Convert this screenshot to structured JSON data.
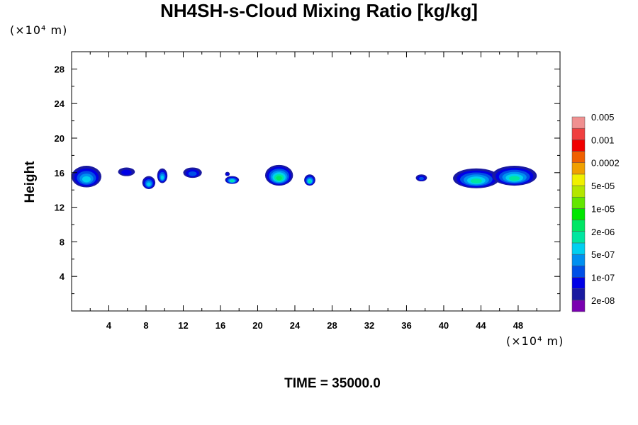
{
  "chart_data": {
    "type": "contour",
    "title": "NH4SH-s-Cloud Mixing Ratio [kg/kg]",
    "ylabel": "Height",
    "x_unit": "(×10⁴ m)",
    "y_unit": "(×10⁴ m)",
    "time_label": "TIME = 35000.0",
    "xlim": [
      0,
      52.5
    ],
    "ylim": [
      0,
      30
    ],
    "xticks": [
      4,
      8,
      12,
      16,
      20,
      24,
      28,
      32,
      36,
      40,
      44,
      48
    ],
    "yticks": [
      4,
      8,
      12,
      16,
      20,
      24,
      28
    ],
    "colorbar": {
      "colors": [
        "#7a00b0",
        "#1a1aa0",
        "#0000e6",
        "#0050e6",
        "#0090f0",
        "#00d0f0",
        "#00e6a0",
        "#00e664",
        "#00e600",
        "#64e600",
        "#b4e600",
        "#f0f000",
        "#f0a000",
        "#f06000",
        "#f00000",
        "#f04040",
        "#f09090"
      ],
      "labels": [
        "2e-08",
        "1e-07",
        "5e-07",
        "2e-06",
        "1e-05",
        "5e-05",
        "0.0002",
        "0.001",
        "0.005"
      ]
    },
    "cloud_cells": [
      {
        "x": [
          0,
          3.2
        ],
        "y": [
          14.3,
          16.8
        ],
        "peak": 5
      },
      {
        "x": [
          5,
          6.8
        ],
        "y": [
          15.6,
          16.6
        ],
        "peak": 2
      },
      {
        "x": [
          7.6,
          9.0
        ],
        "y": [
          14.1,
          15.6
        ],
        "peak": 5
      },
      {
        "x": [
          9.2,
          10.3
        ],
        "y": [
          14.8,
          16.5
        ],
        "peak": 5
      },
      {
        "x": [
          12.0,
          14.0
        ],
        "y": [
          15.4,
          16.6
        ],
        "peak": 3
      },
      {
        "x": [
          16.5,
          17.0
        ],
        "y": [
          15.6,
          16.1
        ],
        "peak": 2
      },
      {
        "x": [
          16.5,
          18.0
        ],
        "y": [
          14.7,
          15.6
        ],
        "peak": 6
      },
      {
        "x": [
          20.8,
          23.8
        ],
        "y": [
          14.5,
          16.9
        ],
        "peak": 7
      },
      {
        "x": [
          25.0,
          26.2
        ],
        "y": [
          14.5,
          15.8
        ],
        "peak": 6
      },
      {
        "x": [
          37.0,
          38.2
        ],
        "y": [
          15.0,
          15.8
        ],
        "peak": 3
      },
      {
        "x": [
          41.0,
          46.0
        ],
        "y": [
          14.2,
          16.5
        ],
        "peak": 6
      },
      {
        "x": [
          45.2,
          50.0
        ],
        "y": [
          14.5,
          16.8
        ],
        "peak": 6
      }
    ]
  }
}
